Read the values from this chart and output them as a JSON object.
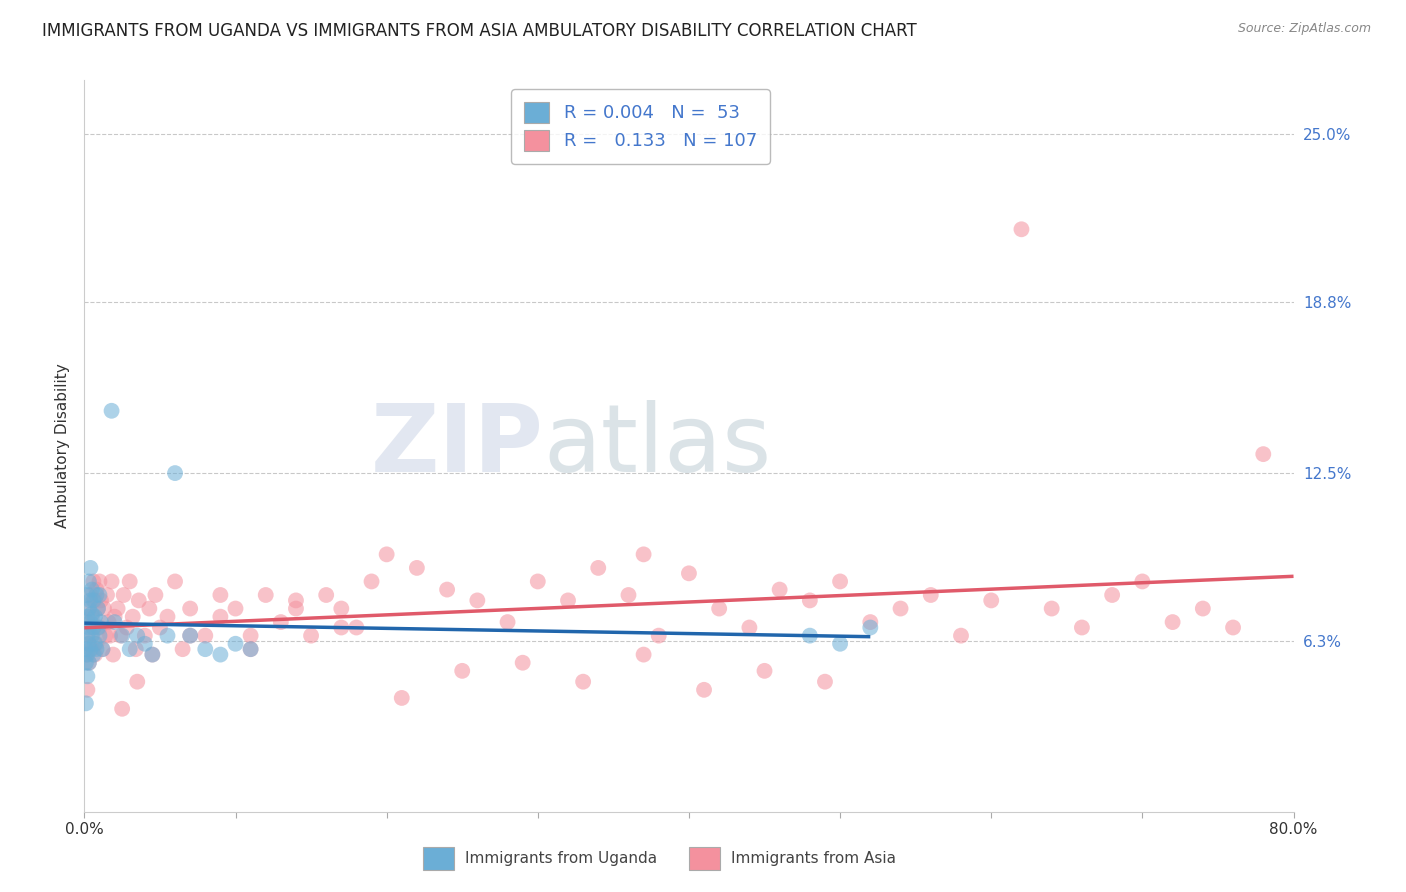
{
  "title": "IMMIGRANTS FROM UGANDA VS IMMIGRANTS FROM ASIA AMBULATORY DISABILITY CORRELATION CHART",
  "source": "Source: ZipAtlas.com",
  "ylabel": "Ambulatory Disability",
  "xlim": [
    0.0,
    0.8
  ],
  "ylim": [
    0.0,
    0.27
  ],
  "yticks": [
    0.063,
    0.125,
    0.188,
    0.25
  ],
  "ytick_labels": [
    "6.3%",
    "12.5%",
    "18.8%",
    "25.0%"
  ],
  "xticks": [
    0.0,
    0.1,
    0.2,
    0.3,
    0.4,
    0.5,
    0.6,
    0.7,
    0.8
  ],
  "xtick_labels": [
    "0.0%",
    "",
    "",
    "",
    "",
    "",
    "",
    "",
    "80.0%"
  ],
  "color_uganda": "#6BAED6",
  "color_asia": "#F4919E",
  "line_color_uganda": "#2166AC",
  "line_color_asia": "#E05A6A",
  "tick_color": "#4477CC",
  "watermark_zip": "ZIP",
  "watermark_atlas": "atlas",
  "background_color": "#FFFFFF",
  "grid_color": "#BBBBBB",
  "title_fontsize": 12,
  "axis_label_fontsize": 11,
  "tick_fontsize": 11,
  "legend_fontsize": 13,
  "scatter_size": 130,
  "scatter_alpha": 0.55
}
